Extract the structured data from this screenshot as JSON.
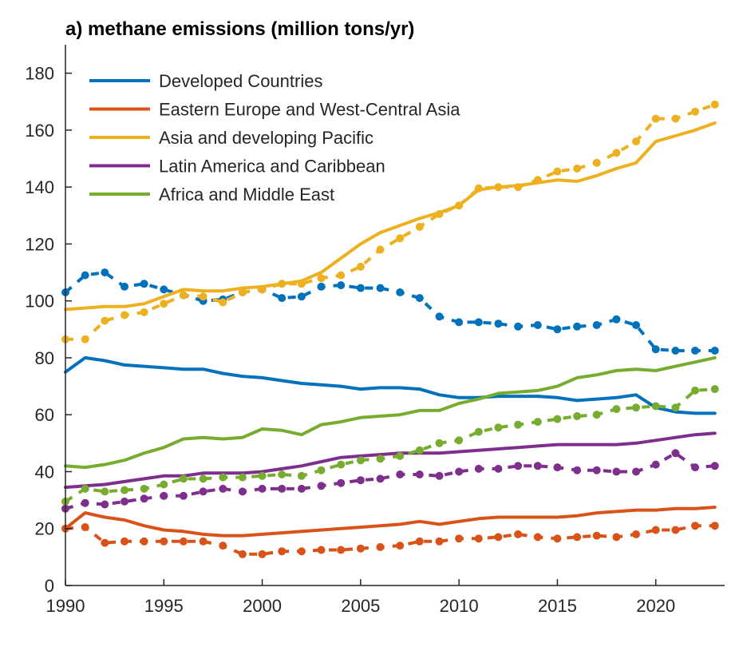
{
  "chart_data": {
    "type": "line",
    "title": "a) methane emissions (million tons/yr)",
    "xlabel": "",
    "ylabel": "",
    "xlim": [
      1990,
      2023.5
    ],
    "ylim": [
      0,
      190
    ],
    "xticks": [
      1990,
      1995,
      2000,
      2005,
      2010,
      2015,
      2020
    ],
    "yticks": [
      0,
      20,
      40,
      60,
      80,
      100,
      120,
      140,
      160,
      180
    ],
    "xtick_labels": [
      "1990",
      "1995",
      "2000",
      "2005",
      "2010",
      "2015",
      "2020"
    ],
    "ytick_labels": [
      "0",
      "20",
      "40",
      "60",
      "80",
      "100",
      "120",
      "140",
      "160",
      "180"
    ],
    "grid": false,
    "legend_position": "top-left",
    "x": [
      1990,
      1991,
      1992,
      1993,
      1994,
      1995,
      1996,
      1997,
      1998,
      1999,
      2000,
      2001,
      2002,
      2003,
      2004,
      2005,
      2006,
      2007,
      2008,
      2009,
      2010,
      2011,
      2012,
      2013,
      2014,
      2015,
      2016,
      2017,
      2018,
      2019,
      2020,
      2021,
      2022,
      2023
    ],
    "series": [
      {
        "name": "Developed Countries",
        "color": "#0072BD",
        "solid": [
          75,
          80,
          79,
          77.5,
          77,
          76.5,
          76,
          76,
          74.5,
          73.5,
          73,
          72,
          71,
          70.5,
          70,
          69,
          69.5,
          69.5,
          69,
          67,
          66,
          66,
          66.5,
          66.5,
          66.5,
          66,
          65,
          65.5,
          66,
          67,
          62.5,
          61,
          60.5,
          60.5
        ],
        "dashed": [
          103,
          109,
          110,
          105,
          106,
          104,
          102,
          100,
          100.5,
          103,
          104,
          101,
          101.5,
          105,
          105.5,
          104.5,
          104.5,
          103,
          101,
          94.5,
          92.5,
          92.5,
          92,
          91,
          91.5,
          90,
          91,
          91.5,
          93.5,
          91.5,
          83,
          82.5,
          82.5,
          82.5
        ]
      },
      {
        "name": "Eastern Europe and West-Central Asia",
        "color": "#D95319",
        "solid": [
          20,
          25.5,
          24,
          23,
          21,
          19.5,
          19,
          18,
          17.5,
          17.5,
          18,
          18.5,
          19,
          19.5,
          20,
          20.5,
          21,
          21.5,
          22.5,
          21.5,
          22.5,
          23.5,
          24,
          24,
          24,
          24,
          24.5,
          25.5,
          26,
          26.5,
          26.5,
          27,
          27,
          27.5
        ],
        "dashed": [
          20,
          20.5,
          15,
          15.5,
          15.5,
          15.5,
          15.5,
          15.5,
          14,
          11,
          11,
          12,
          12,
          12.5,
          12.5,
          13,
          13.5,
          14,
          15.5,
          15.5,
          16.5,
          16.5,
          17,
          18,
          17,
          16.5,
          17,
          17.5,
          17,
          18,
          19.5,
          19.5,
          21,
          21
        ]
      },
      {
        "name": "Asia and developing Pacific",
        "color": "#EDB120",
        "solid": [
          97,
          97.5,
          98,
          98,
          99,
          101.5,
          104,
          103.5,
          103.5,
          104.5,
          105,
          106,
          107,
          110,
          115,
          120,
          124,
          126.5,
          129,
          131,
          133.5,
          139,
          140,
          140.5,
          141.5,
          142.5,
          142,
          144,
          146.5,
          148.5,
          156,
          158,
          160,
          162.5
        ],
        "dashed": [
          86.5,
          86.5,
          93,
          95,
          96,
          99,
          102,
          101.5,
          99.5,
          103,
          104,
          106,
          106,
          108,
          109,
          112,
          118,
          122,
          126,
          130.5,
          133.5,
          139.5,
          140,
          140,
          142.5,
          145.5,
          146.5,
          148.5,
          152,
          156,
          164,
          164,
          166.5,
          169
        ]
      },
      {
        "name": "Latin America and Caribbean",
        "color": "#7E2F8E",
        "solid": [
          34.5,
          35,
          35.5,
          36.5,
          37.5,
          38.5,
          38.5,
          39.5,
          39.5,
          39.5,
          40,
          41,
          42,
          43.5,
          45,
          45.5,
          46,
          46.5,
          46.5,
          46.5,
          47,
          47.5,
          48,
          48.5,
          49,
          49.5,
          49.5,
          49.5,
          49.5,
          50,
          51,
          52,
          53,
          53.5
        ],
        "dashed": [
          27,
          29,
          28.5,
          29.5,
          30.5,
          31.5,
          31.5,
          33,
          34,
          33,
          34,
          34,
          34,
          35,
          36,
          37,
          37.5,
          39,
          39,
          38.5,
          40,
          41,
          41,
          42,
          42,
          41.5,
          40.5,
          40.5,
          40,
          40,
          42.5,
          46.5,
          41.5,
          42
        ]
      },
      {
        "name": "Africa and Middle East",
        "color": "#77AC30",
        "solid": [
          42,
          41.5,
          42.5,
          44,
          46.5,
          48.5,
          51.5,
          52,
          51.5,
          52,
          55,
          54.5,
          53,
          56.5,
          57.5,
          59,
          59.5,
          60,
          61.5,
          61.5,
          64,
          65.5,
          67.5,
          68,
          68.5,
          70,
          73,
          74,
          75.5,
          76,
          75.5,
          77,
          78.5,
          80
        ],
        "dashed": [
          29.5,
          34,
          33,
          33.5,
          34,
          35.5,
          37.5,
          37.5,
          38,
          38,
          38.5,
          39,
          38.5,
          40.5,
          42.5,
          44,
          44.5,
          45.5,
          47.5,
          50,
          51,
          54,
          55.5,
          56.5,
          57.5,
          58.5,
          59.5,
          60,
          62,
          62.5,
          63,
          62.5,
          68.5,
          69
        ]
      }
    ]
  }
}
